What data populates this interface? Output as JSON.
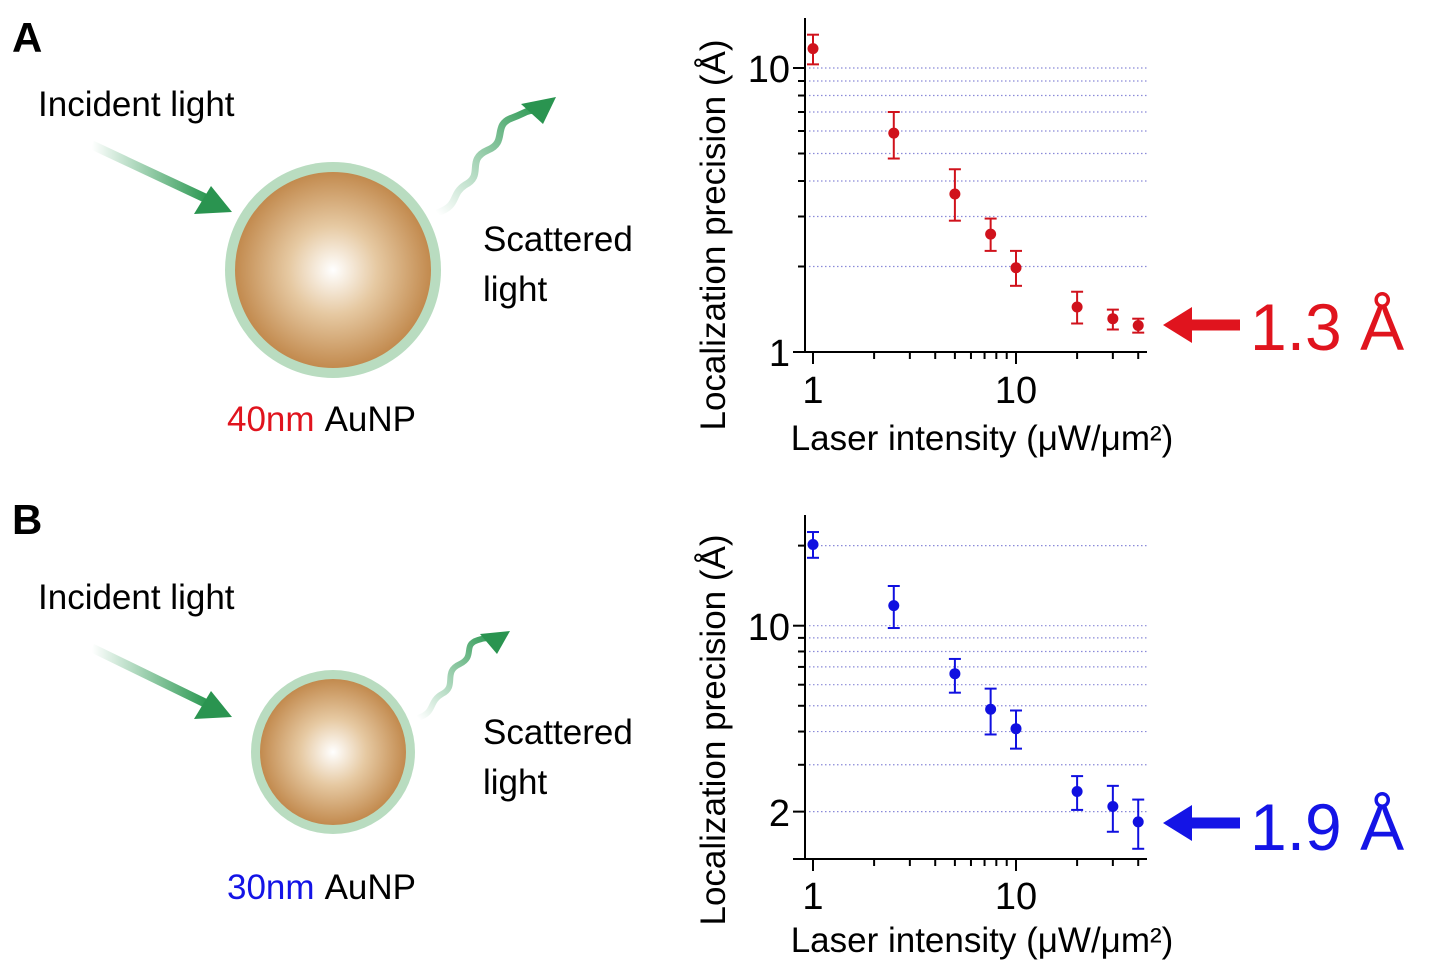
{
  "panels": [
    {
      "letter": "A",
      "incident_label": "Incident light",
      "scattered_label_1": "Scattered",
      "scattered_label_2": "light",
      "particle_size": "40nm",
      "particle_name": "AuNP",
      "size_color": "#e0141e",
      "annotation": "1.3 Å"
    },
    {
      "letter": "B",
      "incident_label": "Incident light",
      "scattered_label_1": "Scattered",
      "scattered_label_2": "light",
      "particle_size": "30nm",
      "particle_name": "AuNP",
      "size_color": "#1414e6",
      "annotation": "1.9 Å"
    }
  ],
  "chart_data": [
    {
      "type": "scatter",
      "xlabel": "Laser intensity (μW/μm²)",
      "ylabel": "Localization precision (Å)",
      "x_scale": "log",
      "y_scale": "log",
      "xlim": [
        0.91,
        44
      ],
      "ylim": [
        1,
        15
      ],
      "x_tick_labels": [
        "1",
        "10"
      ],
      "x_ticks": [
        1,
        10
      ],
      "y_tick_labels": [
        "1",
        "10"
      ],
      "y_ticks": [
        1,
        10
      ],
      "grid": "horizontal dotted at 2,3,4,5,6,7,8,9,10",
      "color": "#d0121c",
      "x": [
        1,
        2.5,
        5,
        7.5,
        10,
        20,
        30,
        40
      ],
      "y": [
        11.7,
        5.9,
        3.6,
        2.6,
        1.98,
        1.44,
        1.31,
        1.24
      ],
      "y_err_upper": [
        13.1,
        7.0,
        4.4,
        2.95,
        2.27,
        1.63,
        1.41,
        1.31
      ],
      "y_err_lower": [
        10.3,
        4.8,
        2.9,
        2.27,
        1.71,
        1.26,
        1.2,
        1.17
      ],
      "annotation": "1.3 Å"
    },
    {
      "type": "scatter",
      "xlabel": "Laser intensity (μW/μm²)",
      "ylabel": "Localization precision (Å)",
      "x_scale": "log",
      "y_scale": "log",
      "xlim": [
        0.91,
        44
      ],
      "ylim": [
        1.33,
        26
      ],
      "x_tick_labels": [
        "1",
        "10"
      ],
      "x_ticks": [
        1,
        10
      ],
      "y_tick_labels": [
        "2",
        "10"
      ],
      "y_ticks": [
        2,
        10
      ],
      "grid": "horizontal dotted at 2,3,4,5,6,7,8,9,10,20",
      "color": "#1010e0",
      "x": [
        1,
        2.5,
        5,
        7.5,
        10,
        20,
        30,
        40
      ],
      "y": [
        20.2,
        11.9,
        6.6,
        4.85,
        4.1,
        2.38,
        2.09,
        1.83
      ],
      "y_err_upper": [
        22.5,
        14.1,
        7.5,
        5.8,
        4.8,
        2.72,
        2.5,
        2.22
      ],
      "y_err_lower": [
        18.0,
        9.8,
        5.6,
        3.9,
        3.45,
        2.03,
        1.68,
        1.45
      ],
      "annotation": "1.9 Å"
    }
  ]
}
